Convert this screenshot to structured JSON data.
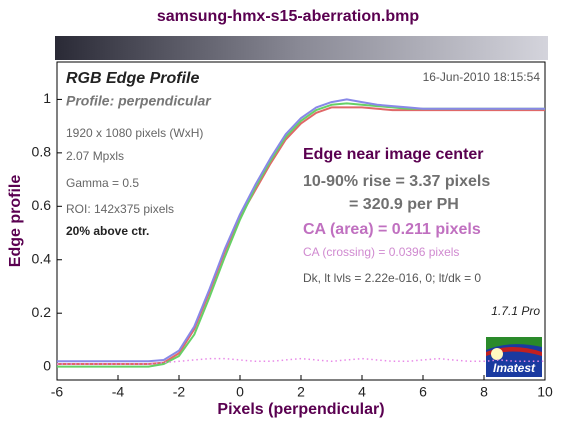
{
  "chart_data": {
    "type": "line",
    "title": "samsung-hmx-s15-aberration.bmp",
    "x_label": "Pixels (perpendicular)",
    "y_label": "Edge profile",
    "annotations": {
      "panel_title": "RGB Edge Profile",
      "profile": "Profile: perpendicular",
      "date": "16-Jun-2010 18:15:54",
      "image_size": "1920 x 1080 pixels (WxH)",
      "mpxls": "2.07 Mpxls",
      "gamma": "Gamma = 0.5",
      "roi": "ROI: 142x375 pixels",
      "location": "20% above ctr.",
      "edge_heading": "Edge near image center",
      "rise": "10-90% rise = 3.37 pixels",
      "per_ph": "= 320.9 per PH",
      "ca_area": "CA (area) = 0.211 pixels",
      "ca_crossing": "CA (crossing) = 0.0396 pixels",
      "levels": "Dk, lt lvls = 2.22e-016, 0;  lt/dk = 0",
      "version": "1.7.1  Pro",
      "logo": "Imatest"
    },
    "x": [
      -6,
      -5.5,
      -5,
      -4.5,
      -4,
      -3.5,
      -3,
      -2.5,
      -2,
      -1.5,
      -1,
      -0.5,
      0,
      0.5,
      1,
      1.5,
      2,
      2.5,
      3,
      3.5,
      4,
      4.5,
      5,
      5.5,
      6,
      6.5,
      7,
      7.5,
      8,
      8.5,
      9,
      9.5,
      10
    ],
    "series": [
      {
        "color": "#e06868",
        "style": "solid",
        "values": [
          0.01,
          0.01,
          0.01,
          0.01,
          0.01,
          0.01,
          0.01,
          0.015,
          0.05,
          0.14,
          0.28,
          0.43,
          0.56,
          0.66,
          0.76,
          0.85,
          0.91,
          0.95,
          0.97,
          0.97,
          0.97,
          0.965,
          0.96,
          0.96,
          0.96,
          0.96,
          0.96,
          0.96,
          0.96,
          0.96,
          0.96,
          0.96,
          0.96
        ]
      },
      {
        "color": "#66d066",
        "style": "solid",
        "values": [
          0,
          0,
          0,
          0,
          0,
          0,
          0,
          0.01,
          0.04,
          0.12,
          0.26,
          0.41,
          0.55,
          0.67,
          0.77,
          0.86,
          0.92,
          0.96,
          0.98,
          0.985,
          0.98,
          0.975,
          0.97,
          0.965,
          0.965,
          0.965,
          0.965,
          0.965,
          0.965,
          0.965,
          0.965,
          0.965,
          0.965
        ]
      },
      {
        "color": "#8888e8",
        "style": "solid",
        "values": [
          0.02,
          0.02,
          0.02,
          0.02,
          0.02,
          0.02,
          0.02,
          0.025,
          0.06,
          0.15,
          0.29,
          0.44,
          0.57,
          0.68,
          0.78,
          0.87,
          0.93,
          0.97,
          0.99,
          1.0,
          0.99,
          0.98,
          0.975,
          0.97,
          0.965,
          0.965,
          0.965,
          0.965,
          0.965,
          0.965,
          0.965,
          0.965,
          0.965
        ]
      },
      {
        "color": "#e88ae8",
        "style": "dotted",
        "values": [
          0.01,
          0.01,
          0.01,
          0.01,
          0.01,
          0.01,
          0.01,
          0.015,
          0.02,
          0.025,
          0.03,
          0.03,
          0.025,
          0.02,
          0.02,
          0.025,
          0.03,
          0.025,
          0.02,
          0.025,
          0.03,
          0.025,
          0.02,
          0.02,
          0.025,
          0.03,
          0.025,
          0.02,
          0.02,
          0.025,
          0.02,
          0.02,
          0.02
        ]
      }
    ],
    "xlim": [
      -6,
      10
    ],
    "ylim": [
      -0.05,
      1.14
    ],
    "xticks": [
      -6,
      -4,
      -2,
      0,
      2,
      4,
      6,
      8,
      10
    ],
    "yticks": [
      0,
      0.2,
      0.4,
      0.6,
      0.8,
      1
    ],
    "grid": false
  }
}
